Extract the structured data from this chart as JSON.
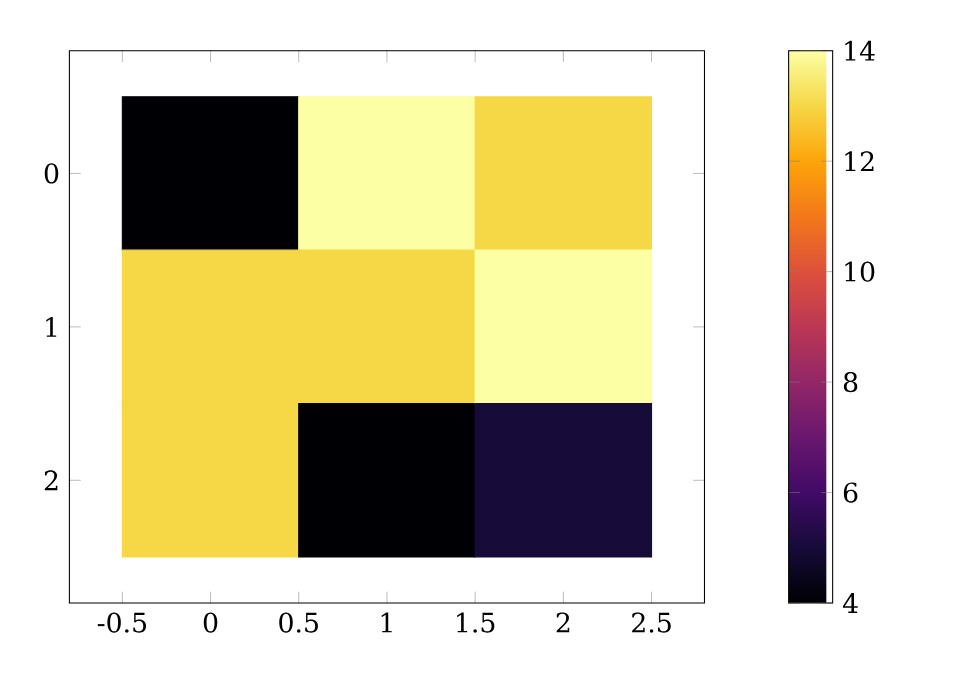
{
  "chart_data": {
    "type": "heatmap",
    "x": [
      0,
      1,
      2
    ],
    "y_categories": [
      "0",
      "1",
      "2"
    ],
    "cells": [
      [
        4,
        14,
        13
      ],
      [
        13,
        13,
        14
      ],
      [
        13,
        4,
        5
      ]
    ],
    "xlim": [
      -0.8,
      2.8
    ],
    "xticks": [
      -0.5,
      0,
      0.5,
      1,
      1.5,
      2,
      2.5
    ],
    "clim": [
      4,
      14
    ],
    "cticks": [
      4,
      6,
      8,
      10,
      12,
      14
    ]
  }
}
